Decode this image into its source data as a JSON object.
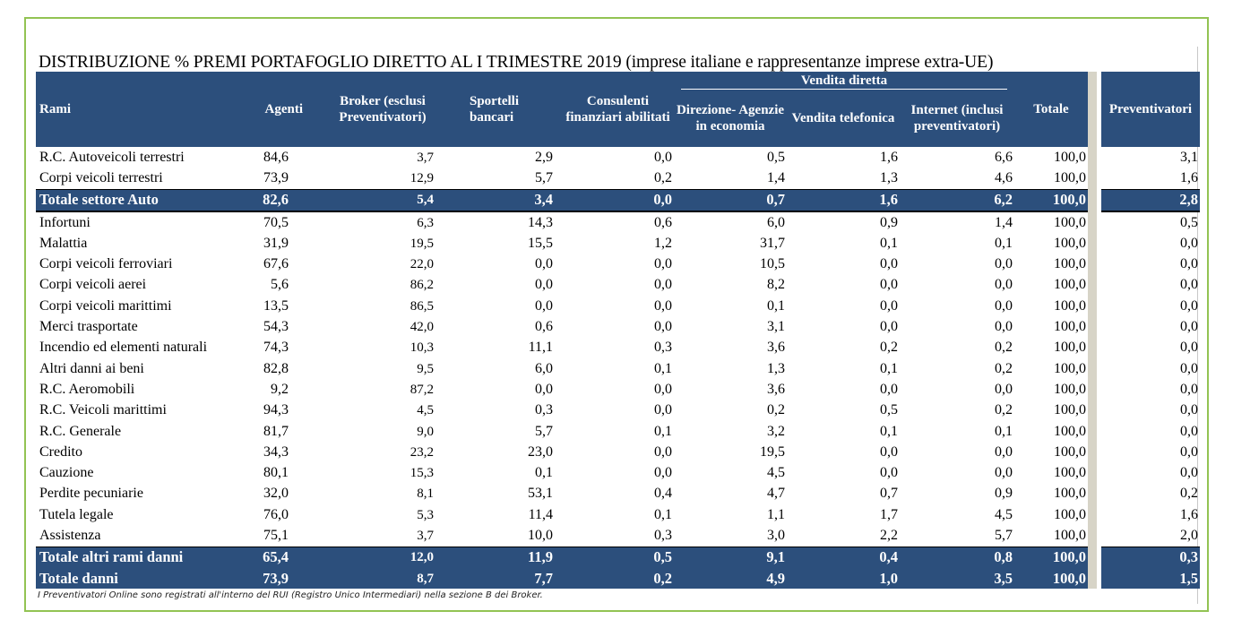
{
  "title": "DISTRIBUZIONE % PREMI PORTAFOGLIO DIRETTO AL I TRIMESTRE 2019 (imprese italiane e rappresentanze imprese extra-UE)",
  "header": {
    "group_label": "Vendita diretta",
    "columns": {
      "rami": "Rami",
      "agenti": "Agenti",
      "broker": "Broker (esclusi Preventivatori)",
      "sportelli": "Sportelli bancari",
      "consulenti": "Consulenti finanziari abilitati",
      "direzione": "Direzione- Agenzie in economia",
      "telefonica": "Vendita telefonica",
      "internet": "Internet (inclusi preventivatori)",
      "totale": "Totale",
      "preventivatori": "Preventivatori"
    }
  },
  "rows": [
    {
      "ramo": "R.C. Autoveicoli terrestri",
      "agenti": "84,6",
      "broker": "3,7",
      "sportelli": "2,9",
      "consulenti": "0,0",
      "direzione": "0,5",
      "telefonica": "1,6",
      "internet": "6,6",
      "totale": "100,0",
      "prev": "3,1"
    },
    {
      "ramo": "Corpi veicoli terrestri",
      "agenti": "73,9",
      "broker": "12,9",
      "sportelli": "5,7",
      "consulenti": "0,2",
      "direzione": "1,4",
      "telefonica": "1,3",
      "internet": "4,6",
      "totale": "100,0",
      "prev": "1,6"
    },
    {
      "ramo": "Totale settore Auto",
      "agenti": "82,6",
      "broker": "5,4",
      "sportelli": "3,4",
      "consulenti": "0,0",
      "direzione": "0,7",
      "telefonica": "1,6",
      "internet": "6,2",
      "totale": "100,0",
      "prev": "2,8"
    },
    {
      "ramo": "Infortuni",
      "agenti": "70,5",
      "broker": "6,3",
      "sportelli": "14,3",
      "consulenti": "0,6",
      "direzione": "6,0",
      "telefonica": "0,9",
      "internet": "1,4",
      "totale": "100,0",
      "prev": "0,5"
    },
    {
      "ramo": "Malattia",
      "agenti": "31,9",
      "broker": "19,5",
      "sportelli": "15,5",
      "consulenti": "1,2",
      "direzione": "31,7",
      "telefonica": "0,1",
      "internet": "0,1",
      "totale": "100,0",
      "prev": "0,0"
    },
    {
      "ramo": "Corpi veicoli ferroviari",
      "agenti": "67,6",
      "broker": "22,0",
      "sportelli": "0,0",
      "consulenti": "0,0",
      "direzione": "10,5",
      "telefonica": "0,0",
      "internet": "0,0",
      "totale": "100,0",
      "prev": "0,0"
    },
    {
      "ramo": "Corpi veicoli aerei",
      "agenti": "5,6",
      "broker": "86,2",
      "sportelli": "0,0",
      "consulenti": "0,0",
      "direzione": "8,2",
      "telefonica": "0,0",
      "internet": "0,0",
      "totale": "100,0",
      "prev": "0,0"
    },
    {
      "ramo": "Corpi veicoli marittimi",
      "agenti": "13,5",
      "broker": "86,5",
      "sportelli": "0,0",
      "consulenti": "0,0",
      "direzione": "0,1",
      "telefonica": "0,0",
      "internet": "0,0",
      "totale": "100,0",
      "prev": "0,0"
    },
    {
      "ramo": "Merci trasportate",
      "agenti": "54,3",
      "broker": "42,0",
      "sportelli": "0,6",
      "consulenti": "0,0",
      "direzione": "3,1",
      "telefonica": "0,0",
      "internet": "0,0",
      "totale": "100,0",
      "prev": "0,0"
    },
    {
      "ramo": "Incendio ed elementi naturali",
      "agenti": "74,3",
      "broker": "10,3",
      "sportelli": "11,1",
      "consulenti": "0,3",
      "direzione": "3,6",
      "telefonica": "0,2",
      "internet": "0,2",
      "totale": "100,0",
      "prev": "0,0"
    },
    {
      "ramo": "Altri danni ai beni",
      "agenti": "82,8",
      "broker": "9,5",
      "sportelli": "6,0",
      "consulenti": "0,1",
      "direzione": "1,3",
      "telefonica": "0,1",
      "internet": "0,2",
      "totale": "100,0",
      "prev": "0,0"
    },
    {
      "ramo": "R.C. Aeromobili",
      "agenti": "9,2",
      "broker": "87,2",
      "sportelli": "0,0",
      "consulenti": "0,0",
      "direzione": "3,6",
      "telefonica": "0,0",
      "internet": "0,0",
      "totale": "100,0",
      "prev": "0,0"
    },
    {
      "ramo": "R.C. Veicoli marittimi",
      "agenti": "94,3",
      "broker": "4,5",
      "sportelli": "0,3",
      "consulenti": "0,0",
      "direzione": "0,2",
      "telefonica": "0,5",
      "internet": "0,2",
      "totale": "100,0",
      "prev": "0,0"
    },
    {
      "ramo": "R.C. Generale",
      "agenti": "81,7",
      "broker": "9,0",
      "sportelli": "5,7",
      "consulenti": "0,1",
      "direzione": "3,2",
      "telefonica": "0,1",
      "internet": "0,1",
      "totale": "100,0",
      "prev": "0,0"
    },
    {
      "ramo": "Credito",
      "agenti": "34,3",
      "broker": "23,2",
      "sportelli": "23,0",
      "consulenti": "0,0",
      "direzione": "19,5",
      "telefonica": "0,0",
      "internet": "0,0",
      "totale": "100,0",
      "prev": "0,0"
    },
    {
      "ramo": "Cauzione",
      "agenti": "80,1",
      "broker": "15,3",
      "sportelli": "0,1",
      "consulenti": "0,0",
      "direzione": "4,5",
      "telefonica": "0,0",
      "internet": "0,0",
      "totale": "100,0",
      "prev": "0,0"
    },
    {
      "ramo": "Perdite pecuniarie",
      "agenti": "32,0",
      "broker": "8,1",
      "sportelli": "53,1",
      "consulenti": "0,4",
      "direzione": "4,7",
      "telefonica": "0,7",
      "internet": "0,9",
      "totale": "100,0",
      "prev": "0,2"
    },
    {
      "ramo": "Tutela legale",
      "agenti": "76,0",
      "broker": "5,3",
      "sportelli": "11,4",
      "consulenti": "0,1",
      "direzione": "1,1",
      "telefonica": "1,7",
      "internet": "4,5",
      "totale": "100,0",
      "prev": "1,6"
    },
    {
      "ramo": "Assistenza",
      "agenti": "75,1",
      "broker": "3,7",
      "sportelli": "10,0",
      "consulenti": "0,3",
      "direzione": "3,0",
      "telefonica": "2,2",
      "internet": "5,7",
      "totale": "100,0",
      "prev": "2,0"
    },
    {
      "ramo": "Totale altri rami danni",
      "agenti": "65,4",
      "broker": "12,0",
      "sportelli": "11,9",
      "consulenti": "0,5",
      "direzione": "9,1",
      "telefonica": "0,4",
      "internet": "0,8",
      "totale": "100,0",
      "prev": "0,3"
    },
    {
      "ramo": "Totale danni",
      "agenti": "73,9",
      "broker": "8,7",
      "sportelli": "7,7",
      "consulenti": "0,2",
      "direzione": "4,9",
      "telefonica": "1,0",
      "internet": "3,5",
      "totale": "100,0",
      "prev": "1,5"
    }
  ],
  "note": "I Preventivatori Online sono registrati all'interno del RUI (Registro Unico Intermediari) nella sezione B dei Broker."
}
